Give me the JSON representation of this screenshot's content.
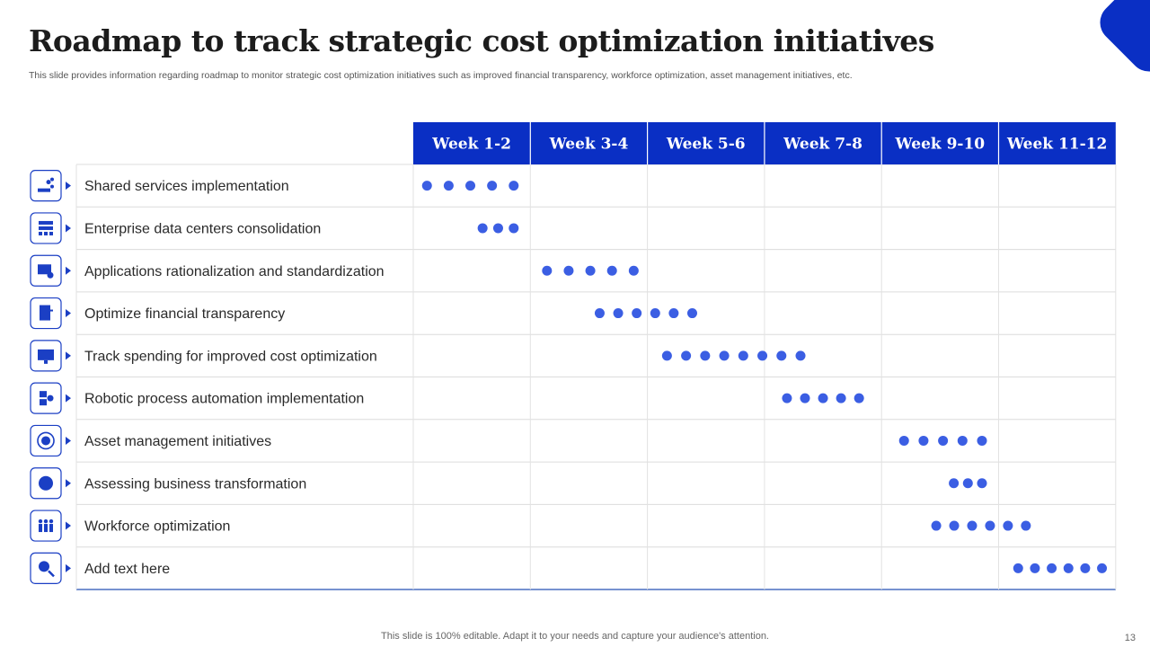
{
  "title": "Roadmap to track strategic cost optimization initiatives",
  "subtitle": "This slide provides information regarding roadmap to monitor strategic cost optimization initiatives such as improved financial transparency, workforce optimization, asset management initiatives, etc.",
  "footer": "This slide is 100% editable. Adapt it to your needs and capture your audience's attention.",
  "page_number": "13",
  "colors": {
    "accent": "#0a2fc4",
    "dot": "#3b5ee3",
    "grid": "#dcdcdc"
  },
  "chart_data": {
    "type": "gantt",
    "columns": [
      "Week 1-2",
      "Week 3-4",
      "Week 5-6",
      "Week 7-8",
      "Week 9-10",
      "Week 11-12"
    ],
    "x_range_weeks": [
      0,
      12
    ],
    "tasks": [
      {
        "label": "Shared services implementation",
        "icon": "hand-share-icon",
        "start_week": 0.05,
        "end_week": 1.9,
        "dots": 5
      },
      {
        "label": "Enterprise data centers consolidation",
        "icon": "data-center-icon",
        "start_week": 1.0,
        "end_week": 1.9,
        "dots": 3
      },
      {
        "label": "Applications rationalization and standardization",
        "icon": "app-settings-icon",
        "start_week": 2.1,
        "end_week": 3.95,
        "dots": 5
      },
      {
        "label": "Optimize financial transparency",
        "icon": "financial-report-icon",
        "start_week": 3.0,
        "end_week": 4.95,
        "dots": 6
      },
      {
        "label": "Track spending for improved cost optimization",
        "icon": "monitor-tracking-icon",
        "start_week": 4.15,
        "end_week": 6.8,
        "dots": 8
      },
      {
        "label": "Robotic process automation implementation",
        "icon": "robot-automation-icon",
        "start_week": 6.2,
        "end_week": 7.8,
        "dots": 5
      },
      {
        "label": "Asset management initiatives",
        "icon": "asset-cycle-icon",
        "start_week": 8.2,
        "end_week": 9.9,
        "dots": 5
      },
      {
        "label": "Assessing business transformation",
        "icon": "globe-transform-icon",
        "start_week": 9.05,
        "end_week": 9.9,
        "dots": 3
      },
      {
        "label": "Workforce optimization",
        "icon": "workforce-icon",
        "start_week": 8.75,
        "end_week": 10.65,
        "dots": 6
      },
      {
        "label": "Add text here",
        "icon": "search-gear-icon",
        "start_week": 10.15,
        "end_week": 11.95,
        "dots": 6
      }
    ]
  }
}
